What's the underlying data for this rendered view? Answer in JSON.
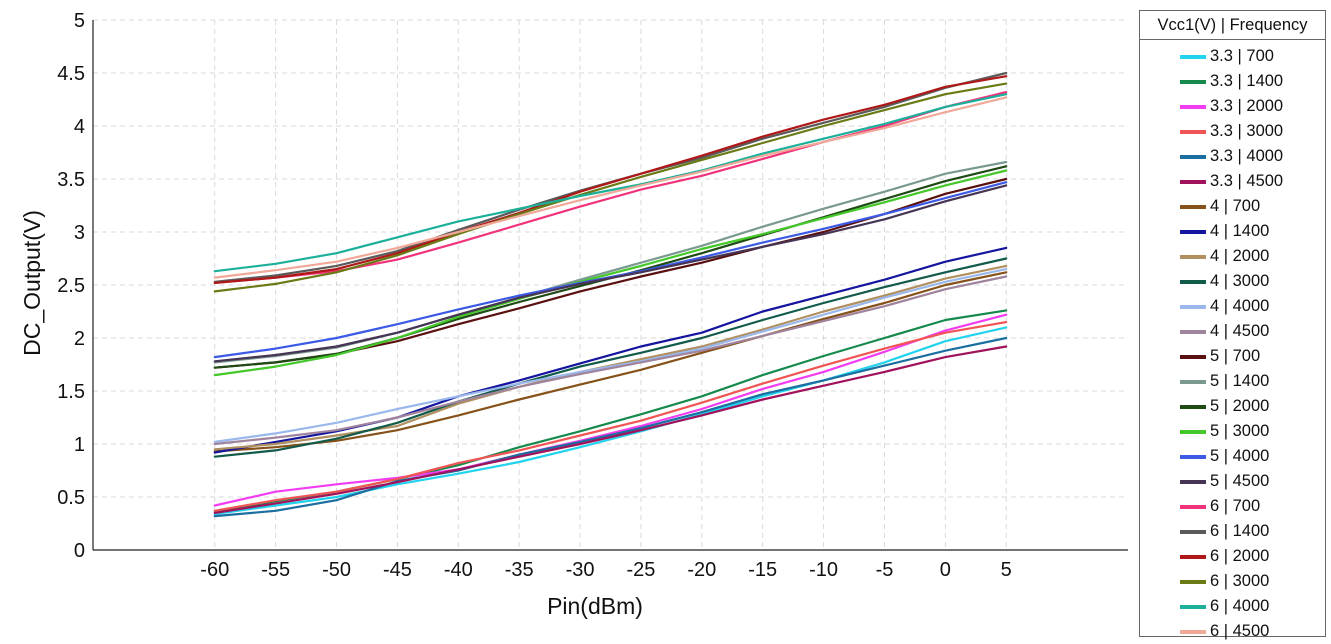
{
  "chart_data": {
    "type": "line",
    "title": "",
    "xlabel": "Pin(dBm)",
    "ylabel": "DC_Output(V)",
    "xlim": [
      -70,
      15
    ],
    "ylim": [
      0,
      5
    ],
    "xticks": [
      -60,
      -55,
      -50,
      -45,
      -40,
      -35,
      -30,
      -25,
      -20,
      -15,
      -10,
      -5,
      0,
      5
    ],
    "yticks": [
      0,
      0.5,
      1,
      1.5,
      2,
      2.5,
      3,
      3.5,
      4,
      4.5,
      5
    ],
    "grid": true,
    "legend_position": "right",
    "legend_title": "Vcc1(V) | Frequency",
    "x": [
      -60,
      -55,
      -50,
      -45,
      -40,
      -35,
      -30,
      -25,
      -20,
      -15,
      -10,
      -5,
      0,
      5
    ],
    "series": [
      {
        "name": "3.3 | 700",
        "color": "#22d3ee",
        "values": [
          0.34,
          0.42,
          0.5,
          0.62,
          0.72,
          0.83,
          0.97,
          1.12,
          1.28,
          1.45,
          1.6,
          1.77,
          1.97,
          2.1
        ]
      },
      {
        "name": "3.3 | 1400",
        "color": "#168a4c",
        "values": [
          0.36,
          0.46,
          0.55,
          0.67,
          0.8,
          0.97,
          1.12,
          1.28,
          1.45,
          1.65,
          1.83,
          2.0,
          2.17,
          2.26
        ]
      },
      {
        "name": "3.3 | 2000",
        "color": "#f13cf1",
        "values": [
          0.42,
          0.55,
          0.62,
          0.68,
          0.76,
          0.9,
          1.03,
          1.17,
          1.33,
          1.52,
          1.68,
          1.87,
          2.07,
          2.22
        ]
      },
      {
        "name": "3.3 | 3000",
        "color": "#f05454",
        "values": [
          0.37,
          0.47,
          0.55,
          0.67,
          0.82,
          0.94,
          1.08,
          1.22,
          1.39,
          1.57,
          1.74,
          1.9,
          2.05,
          2.15
        ]
      },
      {
        "name": "3.3 | 4000",
        "color": "#1b6ea0",
        "values": [
          0.32,
          0.37,
          0.47,
          0.65,
          0.75,
          0.9,
          1.02,
          1.15,
          1.3,
          1.47,
          1.6,
          1.74,
          1.88,
          2.0
        ]
      },
      {
        "name": "3.3 | 4500",
        "color": "#a0125c",
        "values": [
          0.35,
          0.44,
          0.53,
          0.64,
          0.76,
          0.88,
          1.0,
          1.13,
          1.27,
          1.42,
          1.55,
          1.68,
          1.82,
          1.92
        ]
      },
      {
        "name": "4 | 700",
        "color": "#86521a",
        "values": [
          0.93,
          0.97,
          1.03,
          1.13,
          1.27,
          1.42,
          1.56,
          1.7,
          1.86,
          2.02,
          2.18,
          2.33,
          2.5,
          2.62
        ]
      },
      {
        "name": "4 | 1400",
        "color": "#14149e",
        "values": [
          0.92,
          1.02,
          1.12,
          1.25,
          1.45,
          1.6,
          1.76,
          1.92,
          2.05,
          2.25,
          2.4,
          2.55,
          2.72,
          2.85
        ]
      },
      {
        "name": "4 | 2000",
        "color": "#b09060",
        "values": [
          0.95,
          1.0,
          1.08,
          1.17,
          1.38,
          1.54,
          1.68,
          1.8,
          1.92,
          2.08,
          2.25,
          2.4,
          2.56,
          2.68
        ]
      },
      {
        "name": "4 | 3000",
        "color": "#125a4a",
        "values": [
          0.88,
          0.94,
          1.05,
          1.2,
          1.4,
          1.57,
          1.73,
          1.86,
          2.0,
          2.17,
          2.33,
          2.48,
          2.62,
          2.75
        ]
      },
      {
        "name": "4 | 4000",
        "color": "#9ab8ec",
        "values": [
          1.02,
          1.1,
          1.2,
          1.33,
          1.45,
          1.57,
          1.68,
          1.78,
          1.9,
          2.06,
          2.22,
          2.38,
          2.53,
          2.65
        ]
      },
      {
        "name": "4 | 4500",
        "color": "#a0849e",
        "values": [
          1.0,
          1.06,
          1.13,
          1.25,
          1.4,
          1.54,
          1.66,
          1.77,
          1.88,
          2.02,
          2.16,
          2.3,
          2.46,
          2.58
        ]
      },
      {
        "name": "5 | 700",
        "color": "#5a1010",
        "values": [
          1.72,
          1.77,
          1.85,
          1.97,
          2.13,
          2.28,
          2.44,
          2.58,
          2.71,
          2.86,
          3.0,
          3.17,
          3.36,
          3.5
        ]
      },
      {
        "name": "5 | 1400",
        "color": "#7a9a90",
        "values": [
          1.77,
          1.83,
          1.91,
          2.05,
          2.22,
          2.38,
          2.55,
          2.71,
          2.87,
          3.05,
          3.22,
          3.38,
          3.55,
          3.66
        ]
      },
      {
        "name": "5 | 2000",
        "color": "#1e4a14",
        "values": [
          1.72,
          1.77,
          1.85,
          2.0,
          2.18,
          2.34,
          2.49,
          2.64,
          2.8,
          2.97,
          3.14,
          3.31,
          3.48,
          3.62
        ]
      },
      {
        "name": "5 | 3000",
        "color": "#44c82a",
        "values": [
          1.65,
          1.73,
          1.84,
          2.0,
          2.2,
          2.37,
          2.53,
          2.68,
          2.84,
          2.98,
          3.13,
          3.28,
          3.44,
          3.58
        ]
      },
      {
        "name": "5 | 4000",
        "color": "#3c5ae6",
        "values": [
          1.82,
          1.9,
          2.0,
          2.13,
          2.27,
          2.4,
          2.52,
          2.63,
          2.76,
          2.9,
          3.03,
          3.17,
          3.32,
          3.47
        ]
      },
      {
        "name": "5 | 4500",
        "color": "#463454",
        "values": [
          1.78,
          1.84,
          1.92,
          2.05,
          2.22,
          2.38,
          2.51,
          2.62,
          2.74,
          2.86,
          2.98,
          3.12,
          3.29,
          3.44
        ]
      },
      {
        "name": "6 | 700",
        "color": "#f0337a",
        "values": [
          2.52,
          2.57,
          2.63,
          2.74,
          2.9,
          3.07,
          3.24,
          3.4,
          3.53,
          3.69,
          3.85,
          4.0,
          4.18,
          4.32
        ]
      },
      {
        "name": "6 | 1400",
        "color": "#5a5a5a",
        "values": [
          2.53,
          2.59,
          2.68,
          2.82,
          3.02,
          3.21,
          3.39,
          3.55,
          3.7,
          3.88,
          4.03,
          4.18,
          4.36,
          4.5
        ]
      },
      {
        "name": "6 | 2000",
        "color": "#b01818",
        "values": [
          2.52,
          2.57,
          2.65,
          2.8,
          3.0,
          3.18,
          3.38,
          3.55,
          3.72,
          3.9,
          4.06,
          4.2,
          4.37,
          4.47
        ]
      },
      {
        "name": "6 | 3000",
        "color": "#6a7a14",
        "values": [
          2.44,
          2.51,
          2.62,
          2.78,
          2.98,
          3.17,
          3.35,
          3.52,
          3.68,
          3.84,
          4.0,
          4.15,
          4.3,
          4.4
        ]
      },
      {
        "name": "6 | 4000",
        "color": "#1cb09a",
        "values": [
          2.63,
          2.7,
          2.8,
          2.95,
          3.1,
          3.22,
          3.34,
          3.45,
          3.58,
          3.74,
          3.88,
          4.02,
          4.18,
          4.3
        ]
      },
      {
        "name": "6 | 4500",
        "color": "#f0a898",
        "values": [
          2.57,
          2.64,
          2.72,
          2.85,
          3.0,
          3.15,
          3.3,
          3.44,
          3.57,
          3.72,
          3.85,
          3.98,
          4.13,
          4.27
        ]
      }
    ]
  }
}
